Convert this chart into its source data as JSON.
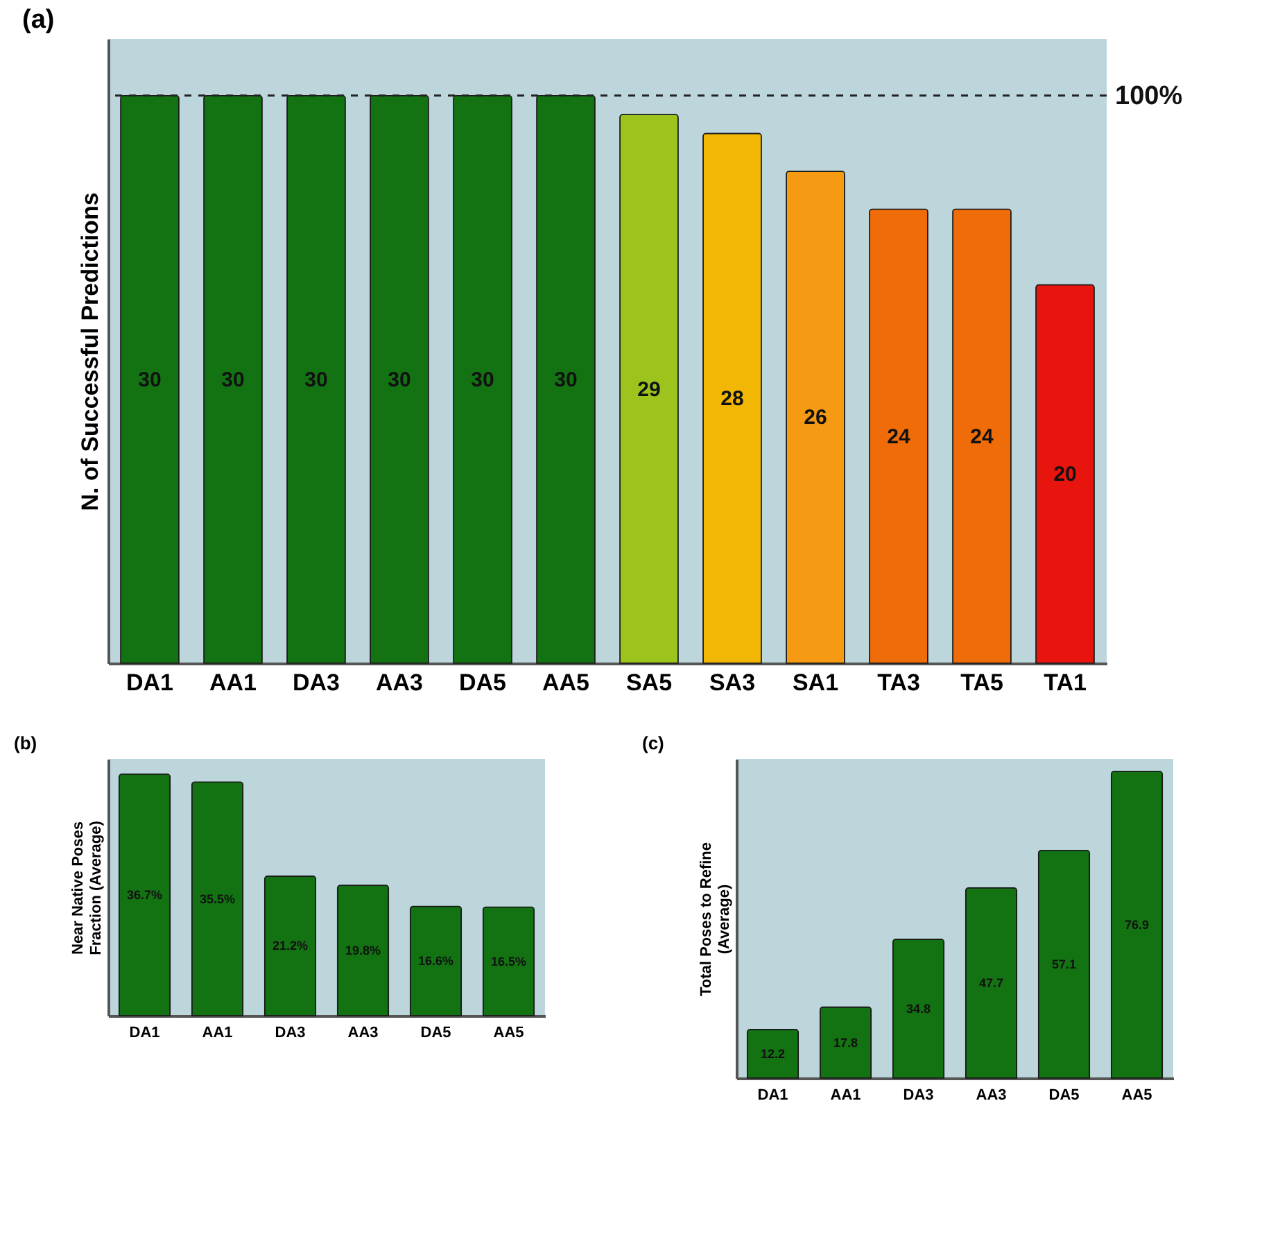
{
  "chart_data": [
    {
      "type": "bar",
      "title": "(a)",
      "ylabel": "N. of Successful Predictions",
      "categories": [
        "DA1",
        "AA1",
        "DA3",
        "AA3",
        "DA5",
        "AA5",
        "SA5",
        "SA3",
        "SA1",
        "TA3",
        "TA5",
        "TA1"
      ],
      "values": [
        30,
        30,
        30,
        30,
        30,
        30,
        29,
        28,
        26,
        24,
        24,
        20
      ],
      "colors": [
        "#137313",
        "#137313",
        "#137313",
        "#137313",
        "#137313",
        "#137313",
        "#9cc41c",
        "#f2b705",
        "#f59a12",
        "#f06c08",
        "#f06c08",
        "#e8140e"
      ],
      "ylim": [
        0,
        33
      ],
      "tick_labels": "x",
      "data_labels": true,
      "ref_lines": [
        {
          "axis": "y",
          "value": 30,
          "line_style": "dashed"
        }
      ],
      "annotations": [
        "100%"
      ]
    },
    {
      "type": "bar",
      "title": "(b)",
      "ylabel": "Near Native Poses Fraction (Average)",
      "categories": [
        "DA1",
        "AA1",
        "DA3",
        "AA3",
        "DA5",
        "AA5"
      ],
      "values": [
        36.7,
        35.5,
        21.2,
        19.8,
        16.6,
        16.5
      ],
      "value_labels": [
        "36.7%",
        "35.5%",
        "21.2%",
        "19.8%",
        "16.6%",
        "16.5%"
      ],
      "color": "#137313",
      "ylim": [
        0,
        39
      ],
      "tick_labels": "x"
    },
    {
      "type": "bar",
      "title": "(c)",
      "ylabel": "Total Poses to Refine (Average)",
      "categories": [
        "DA1",
        "AA1",
        "DA3",
        "AA3",
        "DA5",
        "AA5"
      ],
      "values": [
        12.2,
        17.8,
        34.8,
        47.7,
        57.1,
        76.9
      ],
      "color": "#137313",
      "ylim": [
        0,
        80
      ],
      "tick_labels": "x",
      "data_labels": true
    }
  ]
}
